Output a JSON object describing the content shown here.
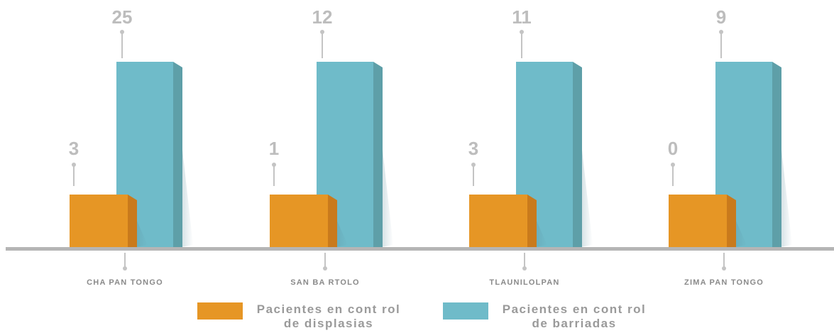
{
  "chart_data": {
    "type": "bar",
    "categories": [
      "CHAPANTONGO",
      "SAN BARTOLO",
      "TLAUNILOLPAN",
      "ZIMAPANTONGO"
    ],
    "category_labels": [
      "CHA PAN TONGO",
      "SAN BA RTOLO",
      "TLAUNILOLPAN",
      "ZIMA PAN TONGO"
    ],
    "series": [
      {
        "name": "Pacientes en control de displasias",
        "values": [
          3,
          1,
          3,
          0
        ],
        "color": "#E69625"
      },
      {
        "name": "Pacientes en control de barriadas",
        "values": [
          25,
          12,
          11,
          9
        ],
        "color": "#6FBBC9"
      }
    ],
    "title": "",
    "xlabel": "",
    "ylabel": "",
    "grid": false,
    "legend_position": "bottom"
  },
  "legend": {
    "items": [
      {
        "line1": "Pacientes en cont rol",
        "line2": "de displasias",
        "color": "#E69625"
      },
      {
        "line1": "Pacientes en cont rol",
        "line2": "de barriadas",
        "color": "#6FBBC9"
      }
    ]
  }
}
